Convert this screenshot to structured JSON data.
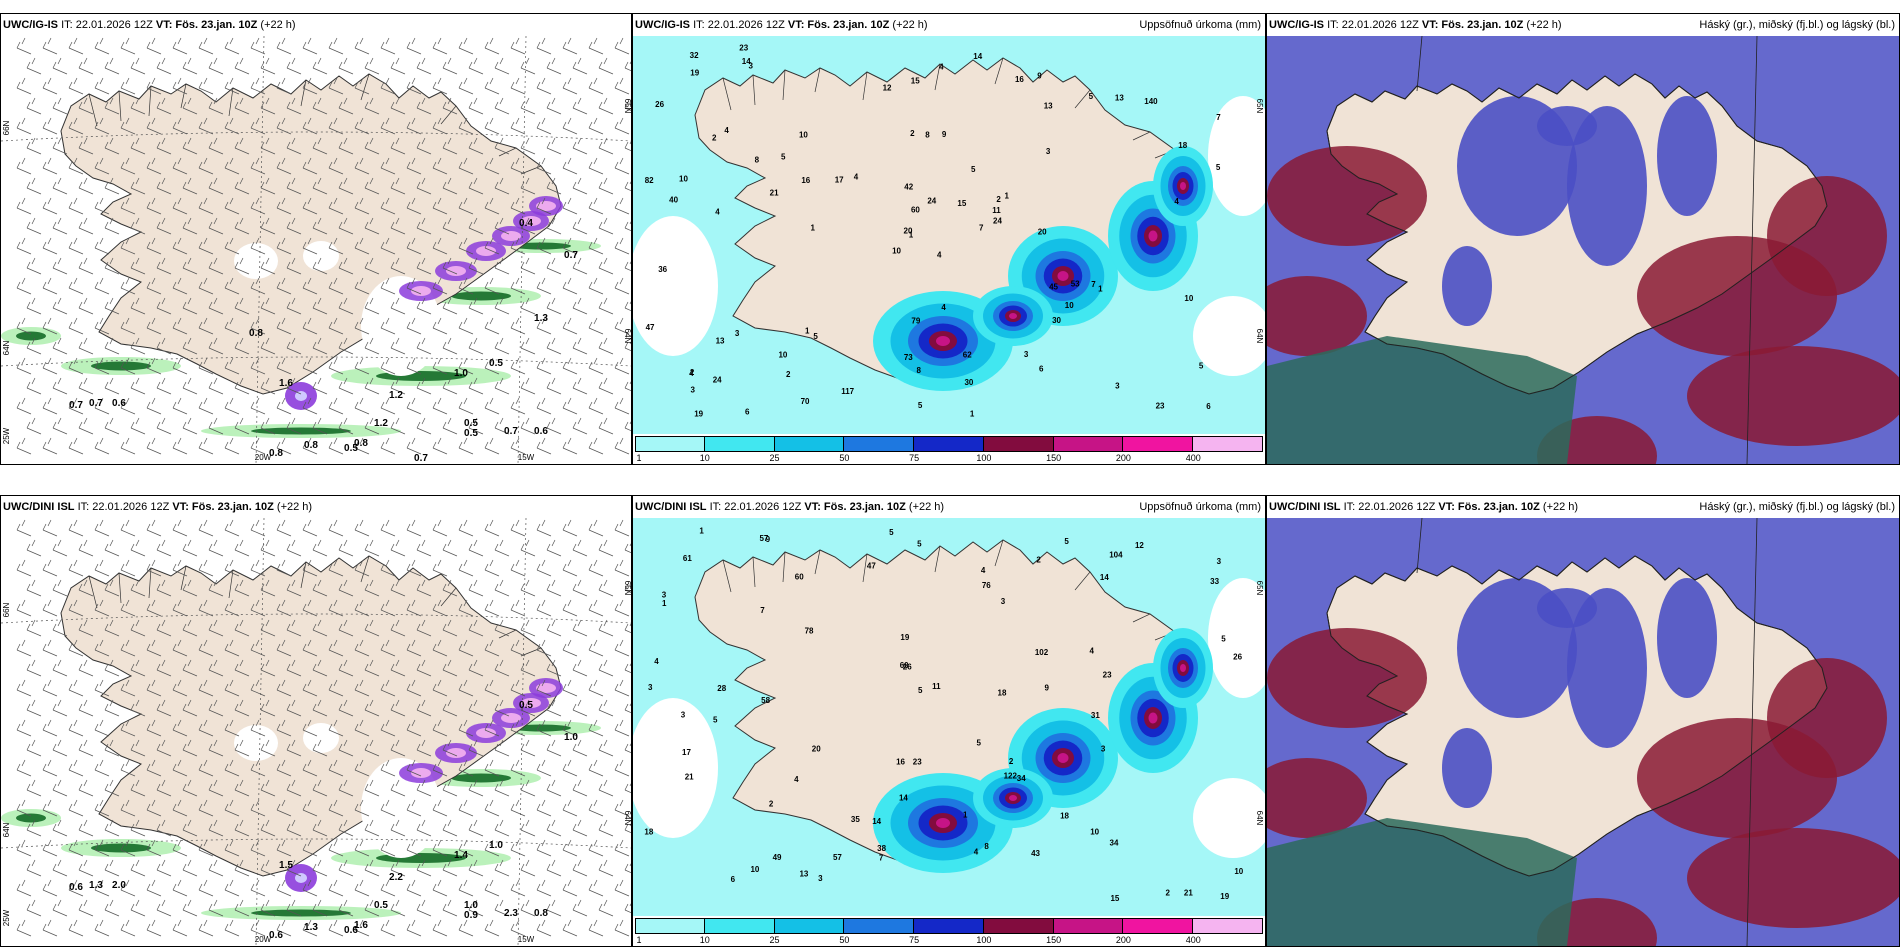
{
  "colors": {
    "land": "#f0e3d6",
    "sea_cyan": "#a5f7f7",
    "cyan": "#41e7f0",
    "mid_cyan": "#14c0e6",
    "blue": "#1e78e0",
    "deep_blue": "#1428c8",
    "maroon": "#820c3e",
    "magenta": "#c61486",
    "pink": "#f014a0",
    "light_pink": "#f5b4f0",
    "purple": "#8c3cdc",
    "green_light": "#b4f0b4",
    "green_dark": "#0a641e",
    "cloud_high": "#2b6b5c",
    "cloud_mid": "#4a4fc4",
    "cloud_low": "#8a1a34"
  },
  "rows": [
    {
      "model": "UWC/IG-IS",
      "it_label": "IT: 22.01.2026 12Z",
      "vt_label": "VT: Fös. 23.jan. 10Z",
      "lead": "(+22 h)",
      "precip_title": "Uppsöfnuð úrkoma (mm)",
      "cloud_title": "Háský (gr.), miðský (fj.bl.) og lágský (bl.)",
      "lat_labels": [
        "66N",
        "64N",
        "25W"
      ],
      "lat_labels_right": [
        "65N",
        "64N"
      ],
      "lon_labels": [
        "20W",
        "15W"
      ],
      "precip_values": [
        "4",
        "2",
        "1",
        "2",
        "2",
        "5",
        "9",
        "9",
        "13",
        "7",
        "3",
        "6",
        "4",
        "7",
        "10",
        "3",
        "6",
        "2",
        "5",
        "3",
        "4",
        "3",
        "2",
        "8",
        "1",
        "1",
        "4",
        "15",
        "40",
        "45",
        "5",
        "20",
        "73",
        "60",
        "10",
        "5",
        "1",
        "23",
        "5",
        "7",
        "14",
        "17",
        "21",
        "30",
        "70",
        "82",
        "11",
        "19",
        "8",
        "24",
        "13",
        "18",
        "26",
        "10",
        "6",
        "10",
        "14",
        "32",
        "62",
        "140",
        "4",
        "1",
        "10",
        "5",
        "13",
        "23",
        "16",
        "12",
        "24",
        "47",
        "79",
        "117",
        "53",
        "16",
        "4",
        "19",
        "8",
        "36",
        "42",
        "30",
        "15",
        "24",
        "20",
        "10",
        "5",
        "4",
        "4",
        "3",
        "1",
        "3"
      ],
      "wind_values": [
        "0.4",
        "0.7",
        "1.6",
        "0.5",
        "0.7",
        "0.5",
        "0.7",
        "0.6",
        "1.2",
        "1.0",
        "0.8",
        "0.8",
        "0.5",
        "0.7",
        "0.6",
        "0.5",
        "1.2",
        "0.8",
        "0.7",
        "1.3",
        "0.8"
      ]
    },
    {
      "model": "UWC/DINI ISL",
      "it_label": "IT: 22.01.2026 12Z",
      "vt_label": "VT: Fös. 23.jan. 10Z",
      "lead": "(+22 h)",
      "precip_title": "Uppsöfnuð úrkoma (mm)",
      "cloud_title": "Háský (gr.), miðský (fj.bl.) og lágský (bl.)",
      "lat_labels": [
        "66N",
        "64N",
        "25W"
      ],
      "lat_labels_right": [
        "65N",
        "64N"
      ],
      "lon_labels": [
        "20W",
        "15W"
      ],
      "precip_values": [
        "3",
        "5",
        "4",
        "3",
        "3",
        "2",
        "5",
        "3",
        "19",
        "12",
        "11",
        "3",
        "5",
        "1",
        "7",
        "2",
        "8",
        "3",
        "5",
        "14",
        "18",
        "34",
        "33",
        "26",
        "49",
        "5",
        "2",
        "9",
        "3",
        "4",
        "17",
        "15",
        "18",
        "6",
        "13",
        "21",
        "23",
        "61",
        "57",
        "78",
        "1",
        "9",
        "10",
        "26",
        "23",
        "4",
        "14",
        "18",
        "38",
        "58",
        "102",
        "10",
        "34",
        "31",
        "43",
        "47",
        "122",
        "60",
        "104",
        "76",
        "16",
        "10",
        "5",
        "19",
        "21",
        "28",
        "14",
        "20",
        "7",
        "4",
        "2",
        "1",
        "57",
        "35",
        "4",
        "60",
        "5"
      ],
      "wind_values": [
        "0.5",
        "1.0",
        "1.5",
        "1.0",
        "0.6",
        "1.0",
        "1.3",
        "2.0",
        "2.2",
        "1.4",
        "0.6",
        "1.6",
        "0.9",
        "2.3",
        "0.8",
        "0.6",
        "0.5",
        "1.3"
      ]
    }
  ],
  "colorbar": {
    "labels": [
      "1",
      "10",
      "25",
      "50",
      "75",
      "100",
      "150",
      "200",
      "400"
    ]
  }
}
